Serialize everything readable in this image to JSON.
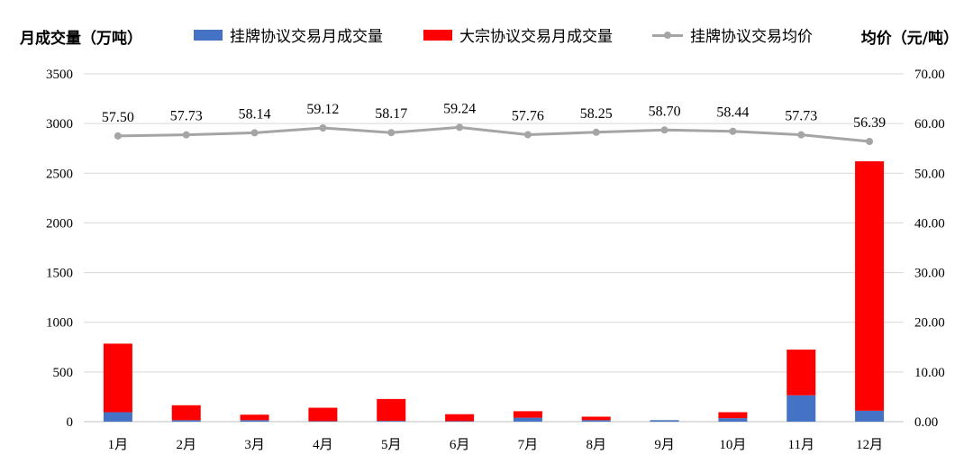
{
  "chart_data": {
    "type": "bar",
    "stacked": true,
    "categories": [
      "1月",
      "2月",
      "3月",
      "4月",
      "5月",
      "6月",
      "7月",
      "8月",
      "9月",
      "10月",
      "11月",
      "12月"
    ],
    "series": [
      {
        "name": "挂牌协议交易月成交量",
        "axis": "left",
        "type": "bar",
        "color": "#4472c4",
        "values": [
          95,
          15,
          15,
          5,
          8,
          5,
          40,
          15,
          15,
          35,
          265,
          110
        ]
      },
      {
        "name": "大宗协议交易月成交量",
        "axis": "left",
        "type": "bar",
        "color": "#ff0000",
        "values": [
          690,
          150,
          55,
          135,
          220,
          70,
          65,
          35,
          0,
          60,
          460,
          2510
        ]
      },
      {
        "name": "挂牌协议交易均价",
        "axis": "right",
        "type": "line",
        "color": "#a5a5a5",
        "values": [
          57.5,
          57.73,
          58.14,
          59.12,
          58.17,
          59.24,
          57.76,
          58.25,
          58.7,
          58.44,
          57.73,
          56.39
        ],
        "labels": [
          "57.50",
          "57.73",
          "58.14",
          "59.12",
          "58.17",
          "59.24",
          "57.76",
          "58.25",
          "58.70",
          "58.44",
          "57.73",
          "56.39"
        ]
      }
    ],
    "ylabel": "月成交量（万吨）",
    "y2label": "均价（元/吨）",
    "ylim": [
      0,
      3500
    ],
    "y2lim": [
      0,
      70
    ],
    "yticks": [
      "0",
      "500",
      "1000",
      "1500",
      "2000",
      "2500",
      "3000",
      "3500"
    ],
    "y2ticks": [
      "0.00",
      "10.00",
      "20.00",
      "30.00",
      "40.00",
      "50.00",
      "60.00",
      "70.00"
    ],
    "grid": true,
    "legend": "top"
  }
}
